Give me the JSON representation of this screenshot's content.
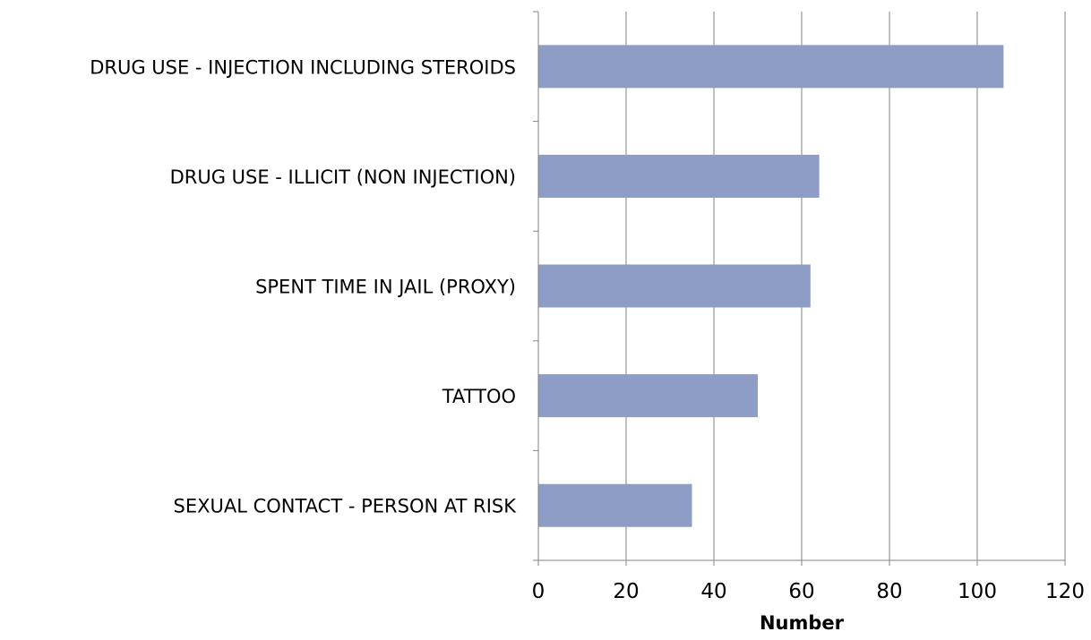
{
  "chart_data": {
    "type": "bar",
    "orientation": "horizontal",
    "categories": [
      "DRUG USE - INJECTION INCLUDING STEROIDS",
      "DRUG USE - ILLICIT (NON INJECTION)",
      "SPENT TIME IN JAIL (PROXY)",
      "TATTOO",
      "SEXUAL CONTACT - PERSON AT RISK"
    ],
    "values": [
      106,
      64,
      62,
      50,
      35
    ],
    "title": "",
    "xlabel": "Number",
    "ylabel": "",
    "xlim": [
      0,
      120
    ],
    "xticks": [
      0,
      20,
      40,
      60,
      80,
      100,
      120
    ],
    "grid": "vertical",
    "legend": "none",
    "bar_color": "#8e9dc6",
    "grid_color": "#868686",
    "axis_color": "#868686"
  }
}
